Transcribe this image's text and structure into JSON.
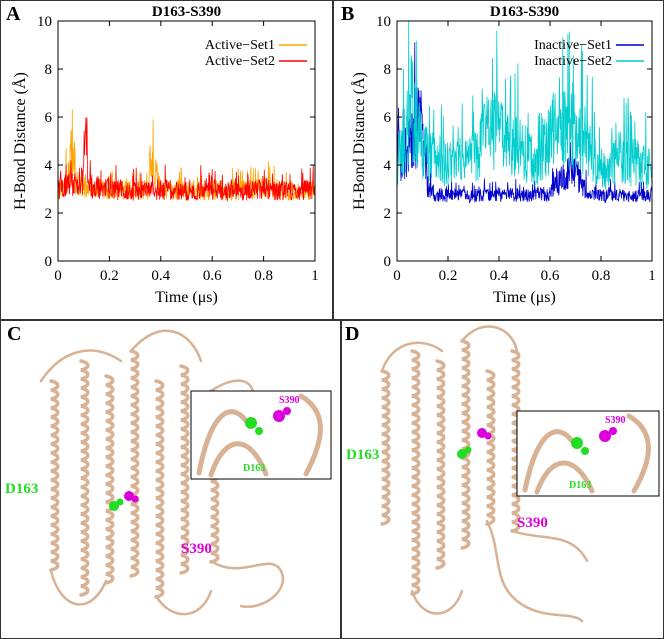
{
  "figure": {
    "panels": [
      {
        "letter": "A"
      },
      {
        "letter": "B"
      },
      {
        "letter": "C"
      },
      {
        "letter": "D"
      }
    ]
  },
  "chart_data": [
    {
      "type": "line",
      "panel": "A",
      "title": "D163-S390",
      "xlabel": "Time (μs)",
      "ylabel": "H-Bond Distance (Å)",
      "xlim": [
        0,
        1
      ],
      "ylim": [
        0,
        10
      ],
      "xticks": [
        "0",
        "0.2",
        "0.4",
        "0.6",
        "0.8",
        "1"
      ],
      "yticks": [
        "0",
        "2",
        "4",
        "6",
        "8",
        "10"
      ],
      "legend": "top-right",
      "series": [
        {
          "name": "Active−Set1",
          "color": "#ffa500",
          "x": [
            0,
            0.02,
            0.04,
            0.05,
            0.06,
            0.07,
            0.08,
            0.1,
            0.15,
            0.2,
            0.3,
            0.35,
            0.36,
            0.4,
            0.5,
            0.6,
            0.7,
            0.8,
            0.9,
            1.0
          ],
          "y": [
            2.7,
            3.0,
            3.5,
            4.6,
            4.9,
            3.2,
            3.0,
            2.9,
            2.8,
            2.9,
            2.7,
            2.8,
            4.4,
            2.8,
            2.7,
            2.8,
            2.7,
            2.9,
            2.7,
            2.8
          ]
        },
        {
          "name": "Active−Set2",
          "color": "#ff0000",
          "x": [
            0,
            0.05,
            0.08,
            0.1,
            0.11,
            0.12,
            0.2,
            0.3,
            0.4,
            0.5,
            0.6,
            0.7,
            0.8,
            0.9,
            1.0
          ],
          "y": [
            2.8,
            3.2,
            3.0,
            3.4,
            6.2,
            3.0,
            2.8,
            2.7,
            2.8,
            2.7,
            2.8,
            2.7,
            2.8,
            2.7,
            2.8
          ]
        },
        {
          "name": "",
          "color": "#0000cd",
          "x": [],
          "y": []
        },
        {
          "name": "",
          "color": "#00cdcd",
          "x": [],
          "y": []
        }
      ]
    },
    {
      "type": "line",
      "panel": "B",
      "title": "D163-S390",
      "xlabel": "Time (μs)",
      "ylabel": "H-Bond Distance (Å)",
      "xlim": [
        0,
        1
      ],
      "ylim": [
        0,
        10
      ],
      "xticks": [
        "0",
        "0.2",
        "0.4",
        "0.6",
        "0.8",
        "1"
      ],
      "yticks": [
        "0",
        "2",
        "4",
        "6",
        "8",
        "10"
      ],
      "legend": "top-right",
      "series": [
        {
          "name": "Inactive−Set1",
          "color": "#0000cd",
          "x": [
            0,
            0.02,
            0.05,
            0.08,
            0.1,
            0.12,
            0.15,
            0.2,
            0.3,
            0.4,
            0.5,
            0.6,
            0.65,
            0.7,
            0.75,
            0.8,
            0.9,
            1.0
          ],
          "y": [
            5.0,
            4.2,
            6.0,
            6.5,
            5.5,
            3.0,
            2.6,
            2.5,
            2.5,
            2.6,
            2.5,
            2.6,
            3.5,
            3.8,
            2.5,
            2.5,
            2.5,
            2.5
          ]
        },
        {
          "name": "Inactive−Set2",
          "color": "#00cdcd",
          "x": [
            0,
            0.03,
            0.06,
            0.1,
            0.2,
            0.3,
            0.35,
            0.4,
            0.45,
            0.5,
            0.55,
            0.6,
            0.65,
            0.7,
            0.75,
            0.8,
            0.9,
            1.0
          ],
          "y": [
            4.5,
            5.5,
            7.5,
            5.0,
            4.2,
            4.5,
            6.0,
            6.3,
            5.5,
            5.0,
            4.0,
            5.8,
            6.2,
            6.0,
            5.5,
            4.0,
            4.5,
            4.0
          ]
        }
      ]
    }
  ],
  "structures": [
    {
      "panel": "C",
      "labels": {
        "residue1": "D163",
        "residue2": "S390"
      },
      "inset_labels": {
        "residue1": "D163",
        "residue2": "S390"
      },
      "colors": {
        "ribbon": "#d8b294",
        "residue1": "#22dd22",
        "residue2": "#dd00dd"
      }
    },
    {
      "panel": "D",
      "labels": {
        "residue1": "D163",
        "residue2": "S390"
      },
      "inset_labels": {
        "residue1": "D163",
        "residue2": "S390"
      },
      "colors": {
        "ribbon": "#d8b294",
        "residue1": "#22dd22",
        "residue2": "#dd00dd"
      }
    }
  ]
}
